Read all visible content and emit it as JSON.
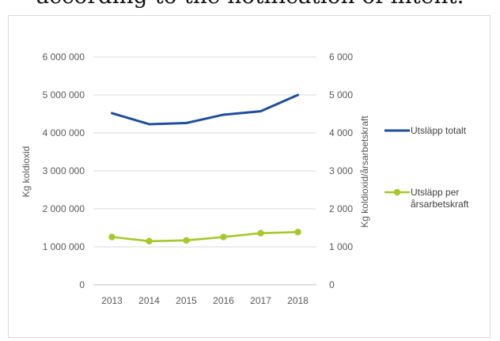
{
  "page": {
    "top_text": "according to the notification of intent."
  },
  "chart_data": {
    "type": "line",
    "categories": [
      "2013",
      "2014",
      "2015",
      "2016",
      "2017",
      "2018"
    ],
    "ylabel": "Kg koldioxid",
    "y2label": "Kg koldioxid/årsarbetskraft",
    "ylim": [
      0,
      6000000
    ],
    "y2lim": [
      0,
      6000
    ],
    "y_ticks": [
      "0",
      "1 000 000",
      "2 000 000",
      "3 000 000",
      "4 000 000",
      "5 000 000",
      "6 000 000"
    ],
    "y2_ticks": [
      "0",
      "1 000",
      "2 000",
      "3 000",
      "4 000",
      "5 000",
      "6 000"
    ],
    "grid": true,
    "legend_position": "right",
    "series": [
      {
        "name": "Utsläpp totalt",
        "axis": "left",
        "color": "#1f4e9c",
        "values": [
          4520000,
          4230000,
          4260000,
          4480000,
          4570000,
          5000000
        ]
      },
      {
        "name": "Utsläpp per årsarbetskraft",
        "legend_lines": [
          "Utsläpp per",
          "årsarbetskraft"
        ],
        "axis": "right",
        "color": "#a5c92b",
        "markers": true,
        "values": [
          1260,
          1150,
          1170,
          1260,
          1360,
          1390
        ]
      }
    ]
  }
}
